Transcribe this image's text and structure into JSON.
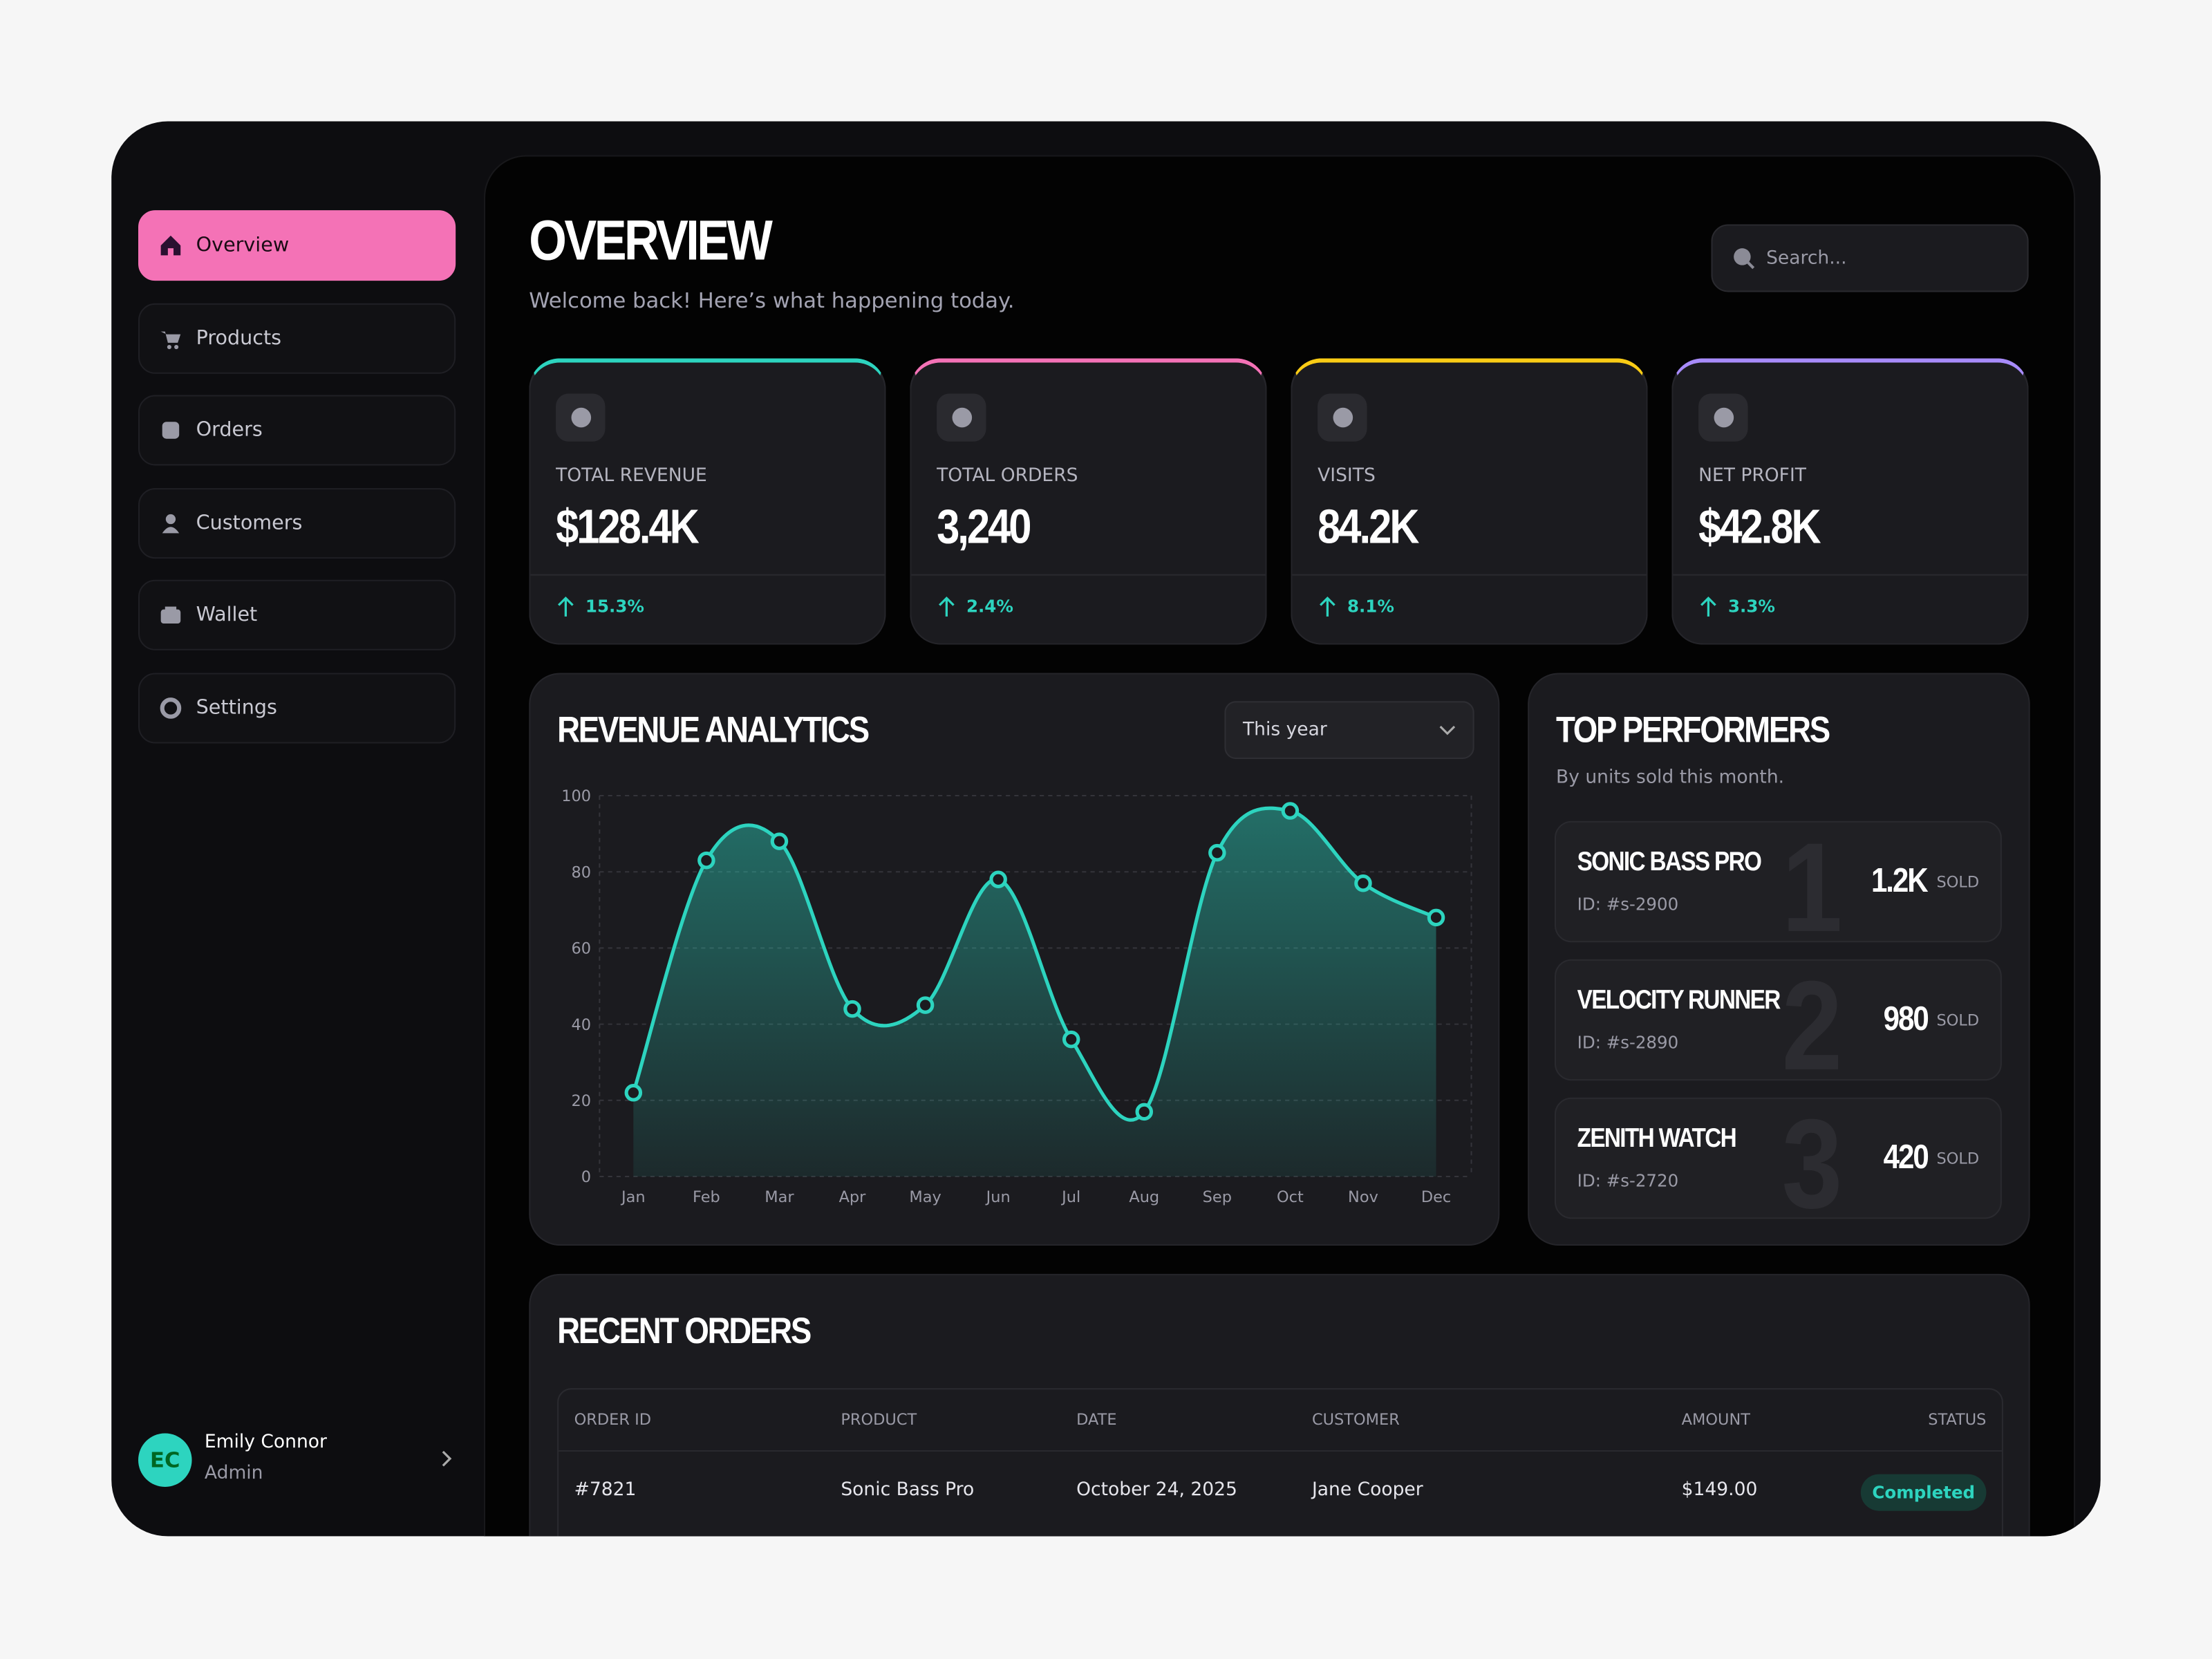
{
  "sidebar": {
    "nav": [
      "Overview",
      "Products",
      "Orders",
      "Customers",
      "Wallet",
      "Settings"
    ],
    "user": {
      "initials": "EC",
      "name": "Emily Connor",
      "role": "Admin"
    }
  },
  "header": {
    "title": "Overview",
    "subtitle": "Welcome back! Here’s what happening today.",
    "search_placeholder": "Search..."
  },
  "kpis": [
    {
      "label": "TOTAL REVENUE",
      "value": "$128.4K",
      "change": "15.3%",
      "color": "#2dd4bf"
    },
    {
      "label": "TOTAL ORDERS",
      "value": "3,240",
      "change": "2.4%",
      "color": "#f472b6"
    },
    {
      "label": "VISITS",
      "value": "84.2K",
      "change": "8.1%",
      "color": "#facc15"
    },
    {
      "label": "NET PROFIT",
      "value": "$42.8K",
      "change": "3.3%",
      "color": "#a78bfa"
    }
  ],
  "chart_data": {
    "type": "area",
    "title": "Revenue Analytics",
    "period": "This year",
    "categories": [
      "Jan",
      "Feb",
      "Mar",
      "Apr",
      "May",
      "Jun",
      "Jul",
      "Aug",
      "Sep",
      "Oct",
      "Nov",
      "Dec"
    ],
    "values": [
      22,
      83,
      88,
      44,
      45,
      78,
      36,
      17,
      85,
      96,
      77,
      68
    ],
    "color": "#2dd4bf",
    "ylim": [
      0,
      100
    ],
    "yticks": [
      0,
      20,
      40,
      60,
      80,
      100
    ],
    "grid": true
  },
  "top_performers": {
    "title": "Top Performers",
    "subtitle": "By units sold this month.",
    "unit": "SOLD",
    "items": [
      {
        "rank": "1",
        "name": "Sonic Bass Pro",
        "id": "ID: #s-2900",
        "sold": "1.2K"
      },
      {
        "rank": "2",
        "name": "Velocity Runner",
        "id": "ID: #s-2890",
        "sold": "980"
      },
      {
        "rank": "3",
        "name": "Zenith Watch",
        "id": "ID: #s-2720",
        "sold": "420"
      }
    ]
  },
  "recent_orders": {
    "title": "Recent Orders",
    "columns": [
      "ORDER ID",
      "PRODUCT",
      "DATE",
      "CUSTOMER",
      "AMOUNT",
      "STATUS"
    ],
    "rows": [
      [
        "#7821",
        "Sonic Bass Pro",
        "October 24, 2025",
        "Jane Cooper",
        "$149.00",
        "Completed"
      ]
    ]
  }
}
